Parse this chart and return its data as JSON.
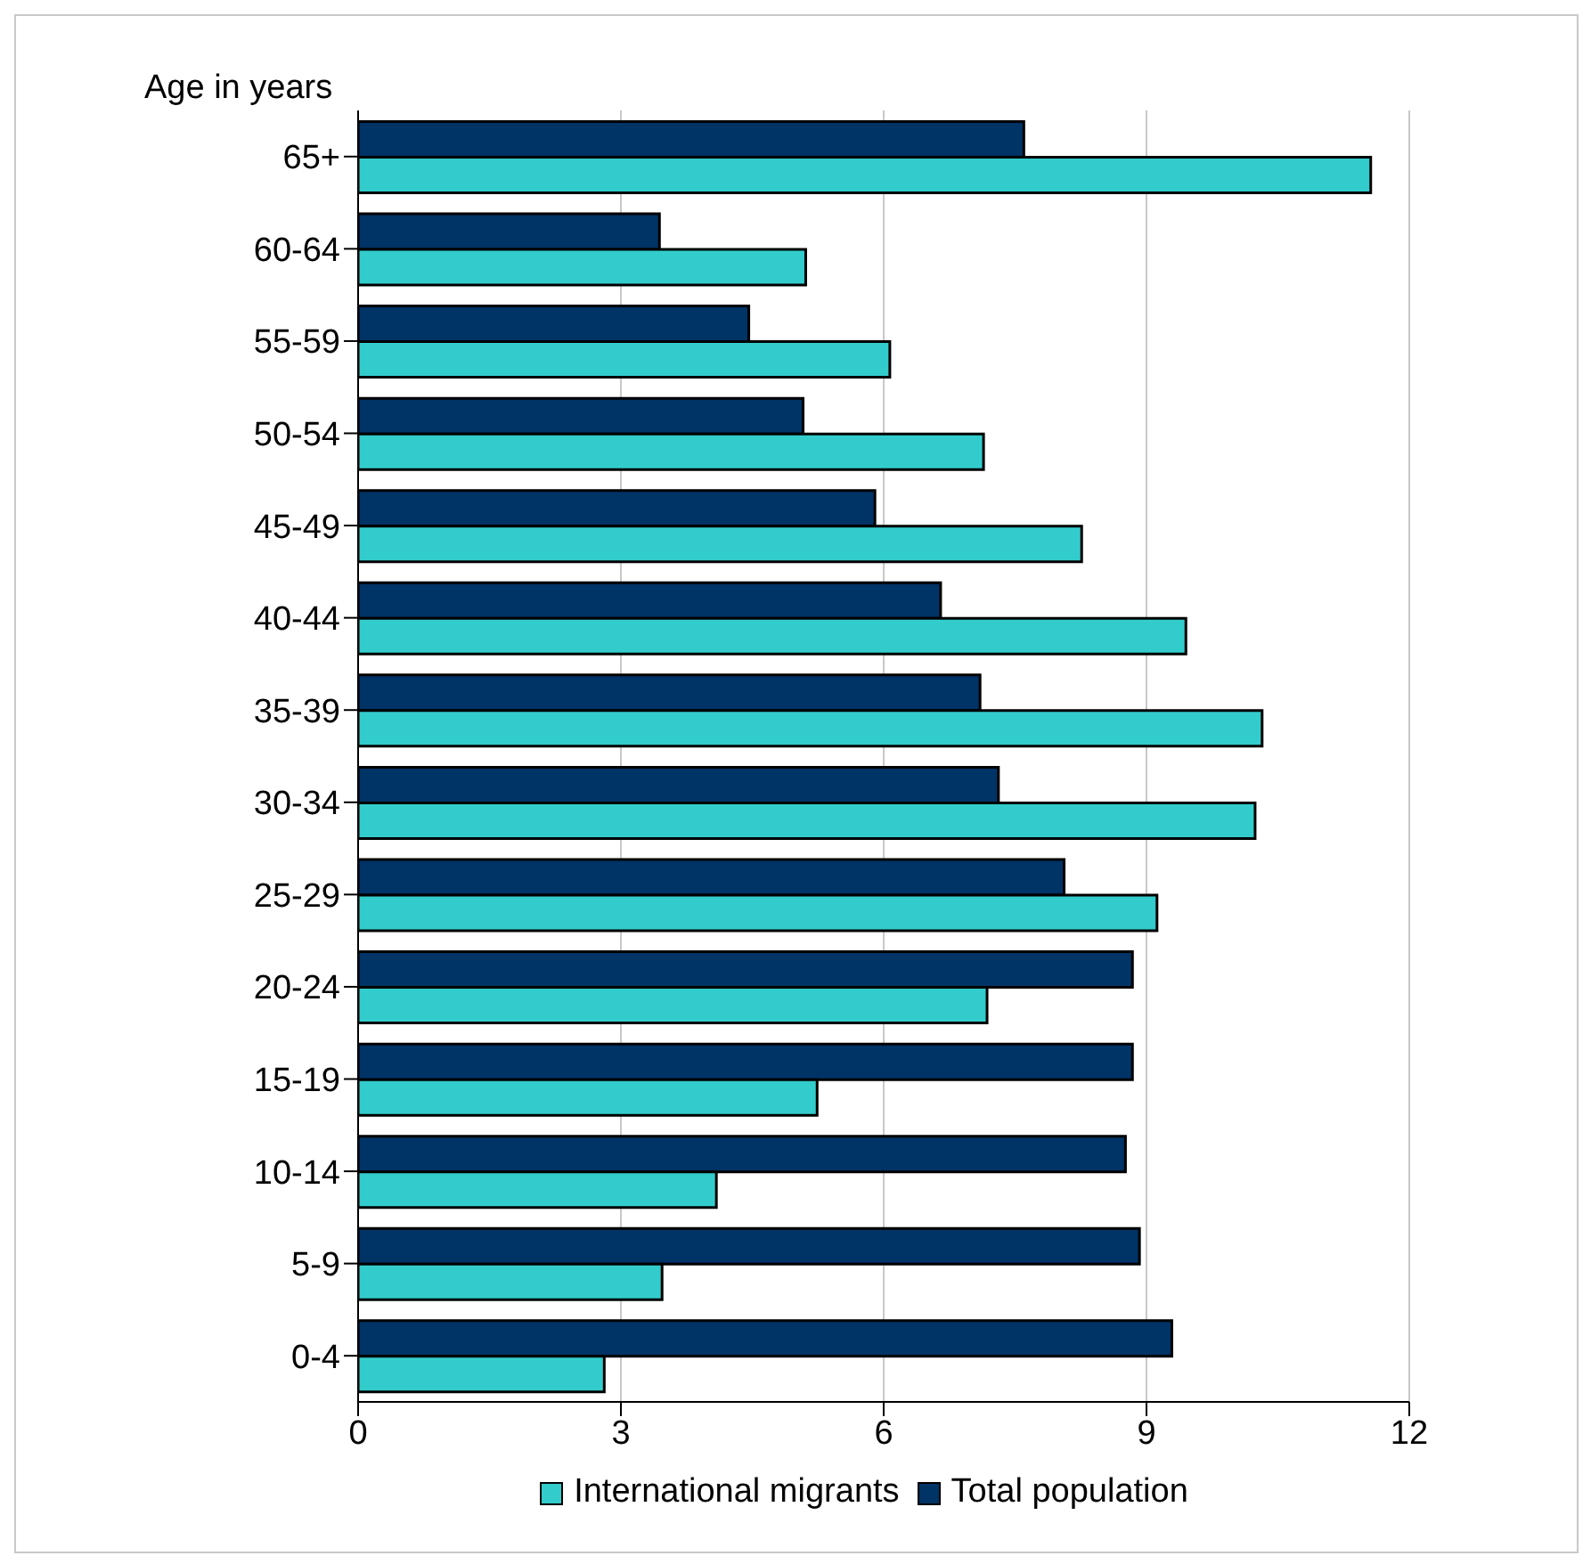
{
  "chart_data": {
    "type": "bar",
    "orientation": "horizontal",
    "ylabel": "Age in years",
    "categories": [
      "65+",
      "60-64",
      "55-59",
      "50-54",
      "45-49",
      "40-44",
      "35-39",
      "30-34",
      "25-29",
      "20-24",
      "15-19",
      "10-14",
      "5-9",
      "0-4"
    ],
    "series": [
      {
        "name": "International migrants",
        "color": "#33cccc",
        "values": [
          11.56,
          5.11,
          6.07,
          7.14,
          8.26,
          9.45,
          10.32,
          10.24,
          9.12,
          7.18,
          5.24,
          4.09,
          3.47,
          2.81
        ]
      },
      {
        "name": "Total population",
        "color": "#003366",
        "values": [
          7.6,
          3.44,
          4.46,
          5.08,
          5.9,
          6.65,
          7.1,
          7.31,
          8.06,
          8.84,
          8.84,
          8.76,
          8.92,
          9.29
        ]
      }
    ],
    "xlim": [
      0,
      12
    ],
    "xticks": [
      0,
      3,
      6,
      9,
      12
    ],
    "grid": "x",
    "legend": "bottom"
  }
}
